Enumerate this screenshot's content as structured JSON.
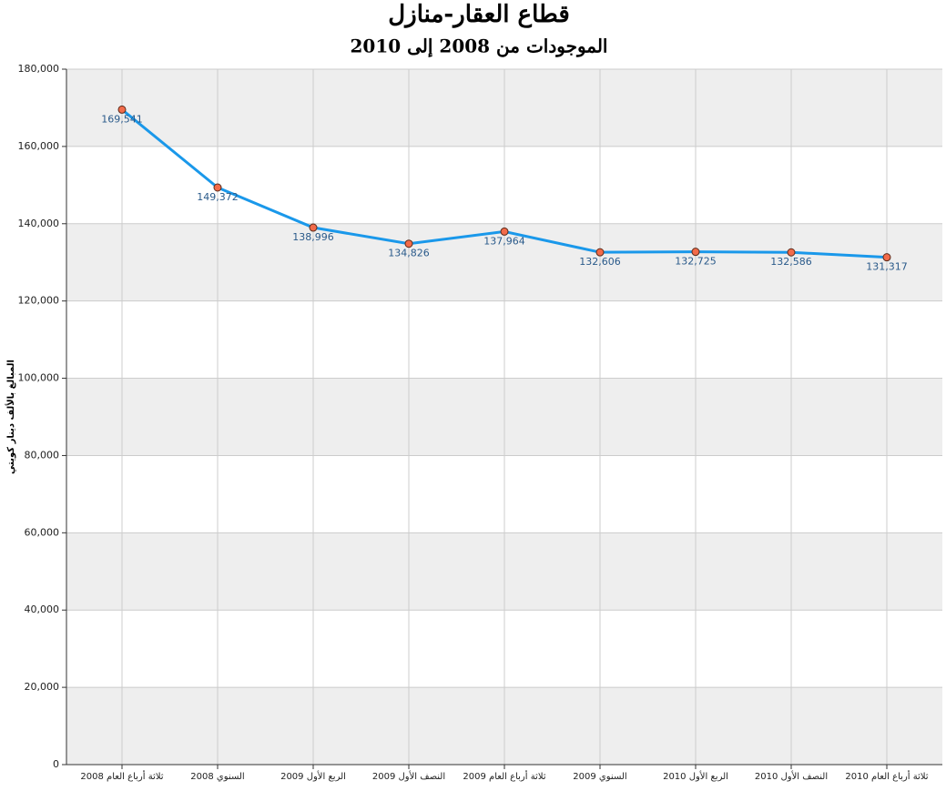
{
  "chart_data": {
    "type": "line",
    "title": "قطاع العقار-منازل",
    "subtitle": "الموجودات من 2008 إلى 2010",
    "y_label": "المبالغ بالألف دينار كويتي",
    "categories": [
      "ثلاثة أرباع العام 2008",
      "السنوي 2008",
      "الربع الأول 2009",
      "النصف الأول 2009",
      "ثلاثة أرباع العام 2009",
      "السنوي 2009",
      "الربع الأول 2010",
      "النصف الأول 2010",
      "ثلاثة أرباع العام 2010"
    ],
    "series": [
      {
        "color": "#1a98ea",
        "marker_color": "#f26b4a",
        "values": [
          169541,
          149372,
          138996,
          134826,
          137964,
          132606,
          132725,
          132586,
          131317
        ],
        "value_labels": [
          "169,541",
          "149,372",
          "138,996",
          "134,826",
          "137,964",
          "132,606",
          "132,725",
          "132,586",
          "131,317"
        ]
      }
    ],
    "ylim": [
      0,
      180000
    ],
    "yticks": [
      0,
      {
        "value": 20000,
        "label": "20,000"
      },
      {
        "value": 40000,
        "label": "40,000"
      },
      {
        "value": 60000,
        "label": "60,000"
      },
      {
        "value": 80000,
        "label": "80,000"
      },
      {
        "value": 100000,
        "label": "100,000"
      },
      {
        "value": 120000,
        "label": "120,000"
      },
      {
        "value": 140000,
        "label": "140,000"
      },
      {
        "value": 160000,
        "label": "160,000"
      },
      {
        "value": 180000,
        "label": "180,000"
      }
    ],
    "grid": true
  }
}
